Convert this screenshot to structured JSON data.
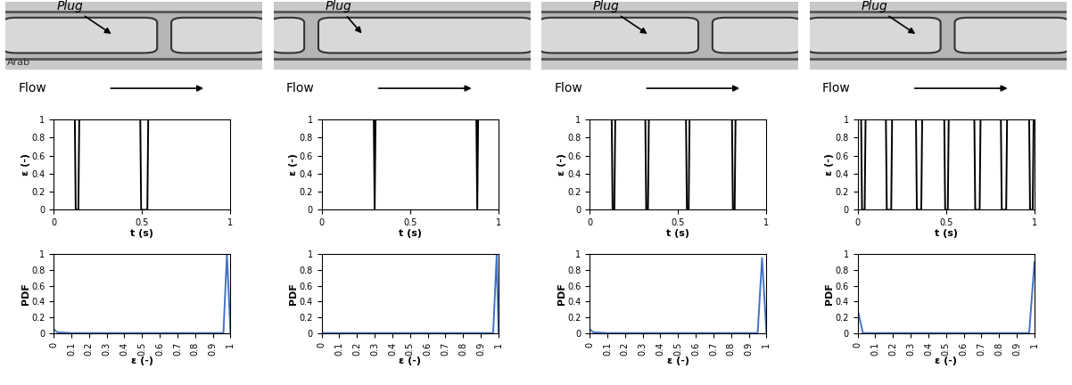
{
  "photos": [
    {
      "label": "Plug",
      "flow": "Flow",
      "caption": "Arab"
    },
    {
      "label": "Plug",
      "flow": "Flow"
    },
    {
      "label": "Plug",
      "flow": "Flow"
    },
    {
      "label": "Plug",
      "flow": "Flow"
    }
  ],
  "chart_data": [
    {
      "type": "line",
      "x_label": "t (s)",
      "y_label": "ε (-)",
      "color": "#000000",
      "x": [
        0,
        0.12,
        0.125,
        0.14,
        0.145,
        0.49,
        0.495,
        0.53,
        0.535,
        1
      ],
      "values": [
        1,
        1,
        0,
        0,
        1,
        1,
        0,
        0,
        1,
        1
      ],
      "xlim": [
        0,
        1
      ],
      "xticks": [
        0,
        0.5,
        1
      ],
      "ylim": [
        0,
        1
      ],
      "yticks": [
        0,
        0.2,
        0.4,
        0.6,
        0.8,
        1
      ]
    },
    {
      "type": "line",
      "x_label": "t (s)",
      "y_label": "ε (-)",
      "color": "#000000",
      "x": [
        0,
        0.295,
        0.3,
        0.305,
        0.875,
        0.88,
        0.885,
        1
      ],
      "values": [
        1,
        1,
        0,
        1,
        1,
        0,
        1,
        1
      ],
      "xlim": [
        0,
        1
      ],
      "xticks": [
        0,
        0.5,
        1
      ],
      "ylim": [
        0,
        1
      ],
      "yticks": [
        0,
        0.2,
        0.4,
        0.6,
        0.8,
        1
      ]
    },
    {
      "type": "line",
      "x_label": "t (s)",
      "y_label": "ε (-)",
      "color": "#000000",
      "x": [
        0,
        0.125,
        0.13,
        0.14,
        0.145,
        0.315,
        0.32,
        0.33,
        0.335,
        0.545,
        0.55,
        0.56,
        0.565,
        0.805,
        0.81,
        0.82,
        0.825,
        1
      ],
      "values": [
        1,
        1,
        0,
        0,
        1,
        1,
        0,
        0,
        1,
        1,
        0,
        0,
        1,
        1,
        0,
        0,
        1,
        1
      ],
      "xlim": [
        0,
        1
      ],
      "xticks": [
        0,
        0.5,
        1
      ],
      "ylim": [
        0,
        1
      ],
      "yticks": [
        0,
        0.2,
        0.4,
        0.6,
        0.8,
        1
      ]
    },
    {
      "type": "line",
      "x_label": "t (s)",
      "y_label": "ε (-)",
      "color": "#000000",
      "x": [
        0,
        0.02,
        0.025,
        0.04,
        0.045,
        0.16,
        0.165,
        0.19,
        0.195,
        0.33,
        0.335,
        0.36,
        0.365,
        0.49,
        0.495,
        0.51,
        0.515,
        0.66,
        0.665,
        0.69,
        0.695,
        0.81,
        0.815,
        0.84,
        0.845,
        0.97,
        0.975,
        0.99,
        0.995,
        1
      ],
      "values": [
        1,
        1,
        0,
        0,
        1,
        1,
        0,
        0,
        1,
        1,
        0,
        0,
        1,
        1,
        0,
        0,
        1,
        1,
        0,
        0,
        1,
        1,
        0,
        0,
        1,
        1,
        0,
        0,
        1,
        1
      ],
      "xlim": [
        0,
        1
      ],
      "xticks": [
        0,
        0.5,
        1
      ],
      "ylim": [
        0,
        1
      ],
      "yticks": [
        0,
        0.2,
        0.4,
        0.6,
        0.8,
        1
      ]
    },
    {
      "type": "line",
      "x_label": "ε (-)",
      "y_label": "PDF",
      "color": "#4472c4",
      "x": [
        0,
        0.02,
        0.1,
        0.2,
        0.3,
        0.4,
        0.5,
        0.6,
        0.7,
        0.8,
        0.9,
        0.96,
        0.98,
        1
      ],
      "values": [
        0.05,
        0.01,
        0,
        0,
        0,
        0,
        0,
        0,
        0,
        0,
        0,
        0,
        1,
        0
      ],
      "xlim": [
        0,
        1
      ],
      "xticks": [
        0,
        0.1,
        0.2,
        0.3,
        0.4,
        0.5,
        0.6,
        0.7,
        0.8,
        0.9,
        1
      ],
      "ylim": [
        0,
        1
      ],
      "yticks": [
        0,
        0.2,
        0.4,
        0.6,
        0.8,
        1
      ]
    },
    {
      "type": "line",
      "x_label": "ε (-)",
      "y_label": "PDF",
      "color": "#4472c4",
      "x": [
        0,
        0.1,
        0.2,
        0.3,
        0.4,
        0.5,
        0.6,
        0.7,
        0.8,
        0.9,
        0.97,
        0.99,
        1
      ],
      "values": [
        0,
        0,
        0,
        0,
        0,
        0,
        0,
        0,
        0,
        0,
        0,
        1,
        0
      ],
      "xlim": [
        0,
        1
      ],
      "xticks": [
        0,
        0.1,
        0.2,
        0.3,
        0.4,
        0.5,
        0.6,
        0.7,
        0.8,
        0.9,
        1
      ],
      "ylim": [
        0,
        1
      ],
      "yticks": [
        0,
        0.2,
        0.4,
        0.6,
        0.8,
        1
      ]
    },
    {
      "type": "line",
      "x_label": "ε (-)",
      "y_label": "PDF",
      "color": "#4472c4",
      "x": [
        0,
        0.02,
        0.1,
        0.2,
        0.3,
        0.4,
        0.5,
        0.6,
        0.7,
        0.8,
        0.9,
        0.95,
        0.975,
        1
      ],
      "values": [
        0.05,
        0.01,
        0,
        0,
        0,
        0,
        0,
        0,
        0,
        0,
        0,
        0,
        0.95,
        0
      ],
      "xlim": [
        0,
        1
      ],
      "xticks": [
        0,
        0.1,
        0.2,
        0.3,
        0.4,
        0.5,
        0.6,
        0.7,
        0.8,
        0.9,
        1
      ],
      "ylim": [
        0,
        1
      ],
      "yticks": [
        0,
        0.2,
        0.4,
        0.6,
        0.8,
        1
      ]
    },
    {
      "type": "line",
      "x_label": "ε (-)",
      "y_label": "PDF",
      "color": "#4472c4",
      "x": [
        0,
        0.03,
        0.1,
        0.2,
        0.3,
        0.4,
        0.5,
        0.6,
        0.7,
        0.8,
        0.9,
        0.97,
        1
      ],
      "values": [
        0.3,
        0,
        0,
        0,
        0,
        0,
        0,
        0,
        0,
        0,
        0,
        0,
        0.9
      ],
      "xlim": [
        0,
        1
      ],
      "xticks": [
        0,
        0.1,
        0.2,
        0.3,
        0.4,
        0.5,
        0.6,
        0.7,
        0.8,
        0.9,
        1
      ],
      "ylim": [
        0,
        1
      ],
      "yticks": [
        0,
        0.2,
        0.4,
        0.6,
        0.8,
        1
      ]
    }
  ]
}
